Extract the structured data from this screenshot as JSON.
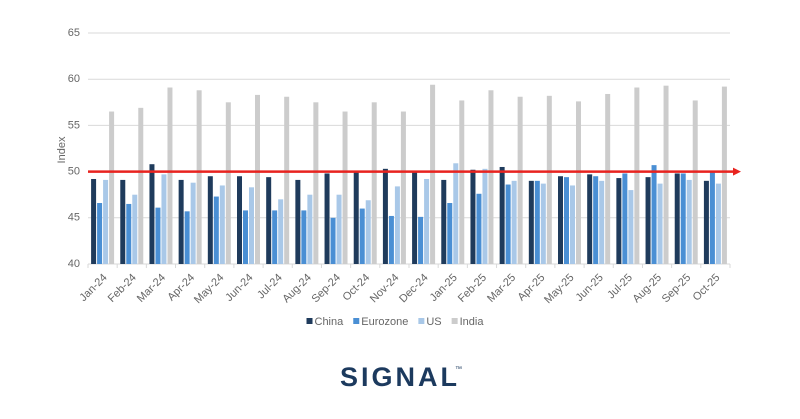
{
  "chart_data": {
    "type": "bar",
    "y_label": "Index",
    "categories": [
      "Jan-24",
      "Feb-24",
      "Mar-24",
      "Apr-24",
      "May-24",
      "Jun-24",
      "Jul-24",
      "Aug-24",
      "Sep-24",
      "Oct-24",
      "Nov-24",
      "Dec-24",
      "Jan-25",
      "Feb-25",
      "Mar-25",
      "Apr-25",
      "May-25",
      "Jun-25",
      "Jul-25",
      "Aug-25",
      "Sep-25",
      "Oct-25"
    ],
    "series": [
      {
        "name": "China",
        "color": "#1f3b5c",
        "values": [
          49.2,
          49.1,
          50.8,
          49.1,
          49.5,
          49.5,
          49.4,
          49.1,
          49.8,
          50.1,
          50.3,
          50.1,
          49.1,
          50.2,
          50.5,
          49.0,
          49.5,
          49.7,
          49.3,
          49.4,
          49.8,
          49.0
        ]
      },
      {
        "name": "Eurozone",
        "color": "#4a8fd4",
        "values": [
          46.6,
          46.5,
          46.1,
          45.7,
          47.3,
          45.8,
          45.8,
          45.8,
          45.0,
          46.0,
          45.2,
          45.1,
          46.6,
          47.6,
          48.6,
          49.0,
          49.4,
          49.5,
          49.8,
          50.7,
          49.8,
          50.0
        ]
      },
      {
        "name": "US",
        "color": "#a9c8e8",
        "values": [
          49.1,
          47.5,
          49.7,
          48.8,
          48.5,
          48.3,
          47.0,
          47.5,
          47.5,
          46.9,
          48.4,
          49.2,
          50.9,
          50.3,
          49.0,
          48.7,
          48.5,
          49.0,
          48.0,
          48.7,
          49.1,
          48.7
        ]
      },
      {
        "name": "India",
        "color": "#cccccc",
        "values": [
          56.5,
          56.9,
          59.1,
          58.8,
          57.5,
          58.3,
          58.1,
          57.5,
          56.5,
          57.5,
          56.5,
          59.4,
          57.7,
          58.8,
          58.1,
          58.2,
          57.6,
          58.4,
          59.1,
          59.3,
          57.7,
          59.2
        ]
      }
    ],
    "ylim": [
      40,
      65
    ],
    "yticks": [
      40,
      45,
      50,
      55,
      60,
      65
    ],
    "grid": true,
    "reference_line": {
      "value": 50,
      "color": "#e8231f"
    },
    "legend": "bottom"
  },
  "logo": {
    "text": "SIGNAL",
    "trademark": "™",
    "color": "#1c3a5e"
  }
}
